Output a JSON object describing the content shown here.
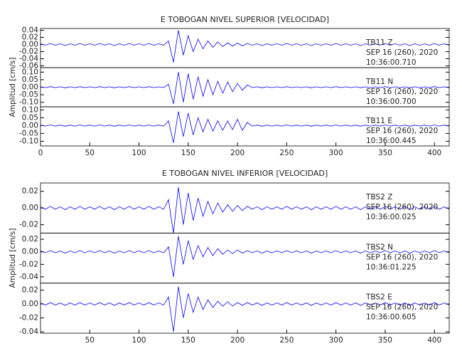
{
  "chart_data": [
    {
      "type": "line",
      "title": "E TOBOGAN NIVEL SUPERIOR [VELOCIDAD]",
      "y_label": "Amplitud [cm/s]",
      "xlim": [
        0,
        415
      ],
      "xticks": [
        0,
        50,
        100,
        150,
        200,
        250,
        300,
        350,
        400
      ],
      "x": [
        0,
        5,
        10,
        15,
        20,
        25,
        30,
        35,
        40,
        45,
        50,
        55,
        60,
        65,
        70,
        75,
        80,
        85,
        90,
        95,
        100,
        105,
        110,
        115,
        120,
        125,
        130,
        135,
        140,
        145,
        150,
        155,
        160,
        165,
        170,
        175,
        180,
        185,
        190,
        195,
        200,
        205,
        210,
        215,
        220,
        225,
        230,
        235,
        240,
        245,
        250,
        255,
        260,
        265,
        270,
        275,
        280,
        285,
        290,
        295,
        300,
        305,
        310,
        315,
        320,
        325,
        330,
        335,
        340,
        345,
        350,
        355,
        360,
        365,
        370,
        375,
        380,
        385,
        390,
        395,
        400,
        405,
        410,
        415
      ],
      "series": [
        {
          "name": "TB11   Z",
          "date": "SEP 16 (260), 2020",
          "time": "10:36:00.710",
          "color": "#0000ff",
          "ylim": [
            -0.065,
            0.045
          ],
          "yticks": [
            0.04,
            0.02,
            {
              "value": 0,
              "label": "0.00"
            },
            -0.02,
            -0.04,
            -0.06
          ],
          "values": [
            0.002,
            -0.002,
            0.003,
            -0.002,
            0.002,
            -0.003,
            0.002,
            -0.002,
            0.003,
            -0.002,
            0.002,
            -0.002,
            0.003,
            -0.002,
            0.002,
            -0.003,
            0.002,
            -0.002,
            0.003,
            -0.002,
            0.002,
            -0.002,
            0.003,
            -0.002,
            0.002,
            -0.002,
            0.01,
            -0.05,
            0.04,
            -0.03,
            0.025,
            -0.02,
            0.015,
            -0.012,
            0.01,
            -0.008,
            0.007,
            -0.006,
            0.005,
            -0.005,
            0.004,
            -0.004,
            0.003,
            -0.002,
            0.002,
            -0.003,
            0.002,
            -0.002,
            0.002,
            -0.002,
            0.003,
            -0.002,
            0.002,
            -0.002,
            0.002,
            -0.003,
            0.002,
            -0.002,
            0.002,
            -0.002,
            0.003,
            -0.002,
            0.002,
            -0.002,
            0.002,
            -0.003,
            0.002,
            -0.002,
            0.002,
            -0.002,
            0.003,
            -0.002,
            0.002,
            -0.002,
            0.002,
            -0.003,
            0.002,
            -0.002,
            0.002,
            -0.002,
            0.003,
            -0.002,
            0.002,
            -0.002
          ]
        },
        {
          "name": "TB11   N",
          "date": "SEP 16 (260), 2020",
          "time": "10:36:00.700",
          "color": "#0000ff",
          "ylim": [
            -0.13,
            0.13
          ],
          "yticks": [
            {
              "value": 0.1,
              "label": "0.10"
            },
            0.05,
            {
              "value": 0,
              "label": "0.00"
            },
            -0.05,
            {
              "value": -0.1,
              "label": "-0.10"
            }
          ],
          "values": [
            0.003,
            -0.003,
            0.004,
            -0.003,
            0.003,
            -0.004,
            0.003,
            -0.003,
            0.004,
            -0.003,
            0.003,
            -0.003,
            0.004,
            -0.003,
            0.003,
            -0.004,
            0.003,
            -0.003,
            0.004,
            -0.003,
            0.003,
            -0.003,
            0.004,
            -0.003,
            0.003,
            -0.003,
            0.02,
            -0.11,
            0.1,
            -0.1,
            0.09,
            -0.08,
            0.07,
            -0.06,
            0.05,
            -0.05,
            0.04,
            -0.04,
            0.035,
            -0.03,
            0.025,
            -0.02,
            0.015,
            -0.003,
            0.003,
            -0.004,
            0.003,
            -0.003,
            0.003,
            -0.003,
            0.004,
            -0.003,
            0.003,
            -0.003,
            0.003,
            -0.004,
            0.003,
            -0.003,
            0.003,
            -0.003,
            0.004,
            -0.003,
            0.003,
            -0.003,
            0.003,
            -0.004,
            0.003,
            -0.003,
            0.003,
            -0.003,
            0.004,
            -0.003,
            0.003,
            -0.003,
            0.003,
            -0.004,
            0.003,
            -0.003,
            0.003,
            -0.003,
            0.004,
            -0.003,
            0.003,
            -0.003
          ]
        },
        {
          "name": "TB11   E",
          "date": "SEP 16 (260), 2020",
          "time": "10:36:00.445",
          "color": "#0000ff",
          "ylim": [
            -0.13,
            0.12
          ],
          "yticks": [
            {
              "value": 0.1,
              "label": "0.10"
            },
            0.05,
            {
              "value": 0,
              "label": "0.00"
            },
            -0.05,
            {
              "value": -0.1,
              "label": "-0.10"
            }
          ],
          "values": [
            0.003,
            -0.003,
            0.004,
            -0.003,
            0.003,
            -0.004,
            0.003,
            -0.003,
            0.004,
            -0.003,
            0.003,
            -0.003,
            0.004,
            -0.003,
            0.003,
            -0.004,
            0.003,
            -0.003,
            0.004,
            -0.003,
            0.003,
            -0.003,
            0.004,
            -0.003,
            0.003,
            -0.003,
            0.03,
            -0.11,
            0.09,
            -0.07,
            0.08,
            -0.06,
            0.05,
            -0.04,
            0.04,
            -0.035,
            0.03,
            -0.03,
            0.03,
            -0.025,
            0.04,
            -0.03,
            0.02,
            -0.003,
            0.003,
            -0.004,
            0.003,
            -0.003,
            0.003,
            -0.003,
            0.004,
            -0.003,
            0.003,
            -0.003,
            0.003,
            -0.004,
            0.003,
            -0.003,
            0.003,
            -0.003,
            0.004,
            -0.003,
            0.003,
            -0.003,
            0.003,
            -0.004,
            0.003,
            -0.003,
            0.003,
            -0.003,
            0.004,
            -0.003,
            0.003,
            -0.003,
            0.003,
            -0.004,
            0.003,
            -0.003,
            0.003,
            -0.003,
            0.004,
            -0.003,
            0.003,
            -0.003
          ]
        }
      ]
    },
    {
      "type": "line",
      "title": "E TOBOGAN NIVEL INFERIOR [VELOCIDAD]",
      "y_label": "Amplitud [cm/s]",
      "xlim": [
        0,
        415
      ],
      "xticks": [
        50,
        100,
        150,
        200,
        250,
        300,
        350,
        400
      ],
      "x": [
        0,
        5,
        10,
        15,
        20,
        25,
        30,
        35,
        40,
        45,
        50,
        55,
        60,
        65,
        70,
        75,
        80,
        85,
        90,
        95,
        100,
        105,
        110,
        115,
        120,
        125,
        130,
        135,
        140,
        145,
        150,
        155,
        160,
        165,
        170,
        175,
        180,
        185,
        190,
        195,
        200,
        205,
        210,
        215,
        220,
        225,
        230,
        235,
        240,
        245,
        250,
        255,
        260,
        265,
        270,
        275,
        280,
        285,
        290,
        295,
        300,
        305,
        310,
        315,
        320,
        325,
        330,
        335,
        340,
        345,
        350,
        355,
        360,
        365,
        370,
        375,
        380,
        385,
        390,
        395,
        400,
        405,
        410,
        415
      ],
      "series": [
        {
          "name": "TBS2   Z",
          "date": "SEP 16 (260), 2020",
          "time": "10:36:00.025",
          "color": "#0000ff",
          "ylim": [
            -0.03,
            0.03
          ],
          "yticks": [
            0.02,
            {
              "value": 0,
              "label": "0.00"
            },
            -0.02
          ],
          "values": [
            0.0015,
            -0.0015,
            0.002,
            -0.0015,
            0.0015,
            -0.002,
            0.0015,
            -0.0015,
            0.002,
            -0.0015,
            0.0015,
            -0.0015,
            0.002,
            -0.0015,
            0.0015,
            -0.002,
            0.0015,
            -0.0015,
            0.002,
            -0.0015,
            0.0015,
            -0.0015,
            0.002,
            -0.0015,
            0.0015,
            -0.0015,
            0.01,
            -0.03,
            0.025,
            -0.02,
            0.018,
            -0.015,
            0.012,
            -0.01,
            0.008,
            -0.007,
            0.006,
            -0.005,
            0.004,
            -0.004,
            0.003,
            -0.003,
            0.002,
            -0.0015,
            0.0015,
            -0.002,
            0.0015,
            -0.0015,
            0.0015,
            -0.0015,
            0.002,
            -0.0015,
            0.0015,
            -0.0015,
            0.0015,
            -0.002,
            0.0015,
            -0.0015,
            0.0015,
            -0.0015,
            0.002,
            -0.0015,
            0.0015,
            -0.0015,
            0.0015,
            -0.002,
            0.0015,
            -0.0015,
            0.0015,
            -0.0015,
            0.002,
            -0.0015,
            0.0015,
            -0.0015,
            0.0015,
            -0.002,
            0.0015,
            -0.0015,
            0.0015,
            -0.0015,
            0.002,
            -0.0015,
            0.0015,
            -0.0015
          ]
        },
        {
          "name": "TBS2   N",
          "date": "SEP 16 (260), 2020",
          "time": "10:36:01.225",
          "color": "#0000ff",
          "ylim": [
            -0.05,
            0.03
          ],
          "yticks": [
            0.02,
            {
              "value": 0,
              "label": "0.00"
            },
            -0.02,
            -0.04
          ],
          "values": [
            0.0015,
            -0.0015,
            0.002,
            -0.0015,
            0.0015,
            -0.002,
            0.0015,
            -0.0015,
            0.002,
            -0.0015,
            0.0015,
            -0.0015,
            0.002,
            -0.0015,
            0.0015,
            -0.002,
            0.0015,
            -0.0015,
            0.002,
            -0.0015,
            0.0015,
            -0.0015,
            0.002,
            -0.0015,
            0.0015,
            -0.0015,
            0.008,
            -0.04,
            0.025,
            -0.02,
            0.018,
            -0.012,
            0.01,
            -0.008,
            0.007,
            -0.006,
            0.005,
            -0.004,
            0.003,
            -0.003,
            0.003,
            -0.002,
            0.002,
            -0.0015,
            0.0015,
            -0.002,
            0.0015,
            -0.0015,
            0.0015,
            -0.0015,
            0.002,
            -0.0015,
            0.0015,
            -0.0015,
            0.0015,
            -0.002,
            0.0015,
            -0.0015,
            0.0015,
            -0.0015,
            0.002,
            -0.0015,
            0.0015,
            -0.0015,
            0.0015,
            -0.002,
            0.0015,
            -0.0015,
            0.0015,
            -0.0015,
            0.002,
            -0.0015,
            0.0015,
            -0.0015,
            0.0015,
            -0.002,
            0.0015,
            -0.0015,
            0.0015,
            -0.0015,
            0.002,
            -0.0015,
            0.0015,
            -0.0015
          ]
        },
        {
          "name": "TBS2   E",
          "date": "SEP 16 (260), 2020",
          "time": "10:36:00.605",
          "color": "#0000ff",
          "ylim": [
            -0.042,
            0.03
          ],
          "yticks": [
            0.02,
            {
              "value": 0,
              "label": "0.00"
            },
            -0.02,
            -0.04
          ],
          "values": [
            0.0015,
            -0.0015,
            0.002,
            -0.0015,
            0.0015,
            -0.002,
            0.0015,
            -0.0015,
            0.002,
            -0.0015,
            0.0015,
            -0.0015,
            0.002,
            -0.0015,
            0.0015,
            -0.002,
            0.0015,
            -0.0015,
            0.002,
            -0.0015,
            0.0015,
            -0.0015,
            0.002,
            -0.0015,
            0.0015,
            -0.0015,
            0.01,
            -0.04,
            0.025,
            -0.02,
            0.015,
            -0.012,
            0.01,
            -0.008,
            0.006,
            -0.005,
            0.004,
            -0.003,
            0.003,
            -0.003,
            0.002,
            -0.002,
            0.002,
            -0.0015,
            0.0015,
            -0.002,
            0.0015,
            -0.0015,
            0.0015,
            -0.0015,
            0.002,
            -0.0015,
            0.0015,
            -0.0015,
            0.0015,
            -0.002,
            0.0015,
            -0.0015,
            0.0015,
            -0.0015,
            0.002,
            -0.0015,
            0.0015,
            -0.0015,
            0.0015,
            -0.002,
            0.0015,
            -0.0015,
            0.0015,
            -0.0015,
            0.002,
            -0.0015,
            0.0015,
            -0.0015,
            0.0015,
            -0.002,
            0.0015,
            -0.0015,
            0.0015,
            -0.0015,
            0.002,
            -0.0015,
            0.0015,
            -0.0015
          ]
        }
      ]
    }
  ]
}
